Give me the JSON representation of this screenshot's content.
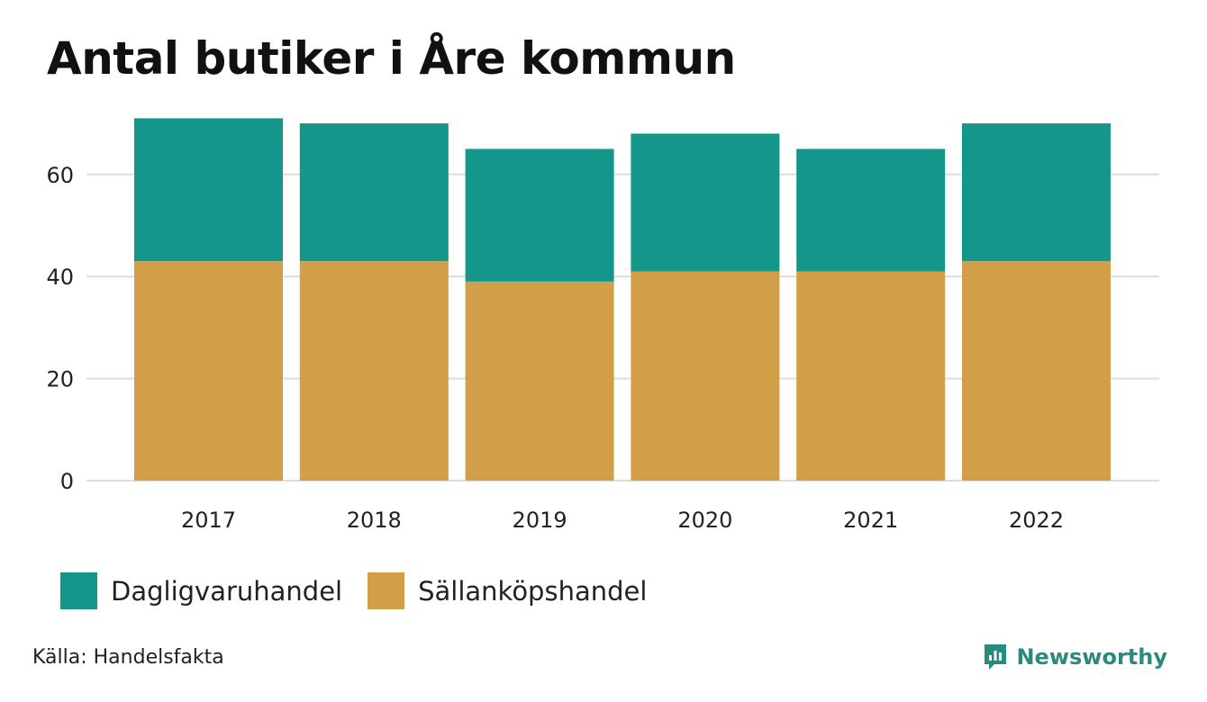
{
  "title": "Antal butiker i Åre kommun",
  "source": "Källa: Handelsfakta",
  "brand": {
    "name": "Newsworthy",
    "icon": "newsworthy-logo-icon"
  },
  "colors": {
    "Dagligvaruhandel": "#15968a",
    "Sällanköpshandel": "#d29f48",
    "grid": "#dddddd"
  },
  "legend": [
    {
      "label": "Dagligvaruhandel",
      "color": "#15968a"
    },
    {
      "label": "Sällanköpshandel",
      "color": "#d29f48"
    }
  ],
  "chart_data": {
    "type": "bar",
    "stacked": true,
    "title": "Antal butiker i Åre kommun",
    "xlabel": "",
    "ylabel": "",
    "categories": [
      "2017",
      "2018",
      "2019",
      "2020",
      "2021",
      "2022"
    ],
    "series": [
      {
        "name": "Sällanköpshandel",
        "values": [
          43,
          43,
          39,
          41,
          41,
          43
        ]
      },
      {
        "name": "Dagligvaruhandel",
        "values": [
          28,
          27,
          26,
          27,
          24,
          27
        ]
      }
    ],
    "yticks": [
      0,
      20,
      40,
      60
    ],
    "ylim": [
      0,
      71
    ],
    "grid": true,
    "legend_position": "bottom-left"
  }
}
